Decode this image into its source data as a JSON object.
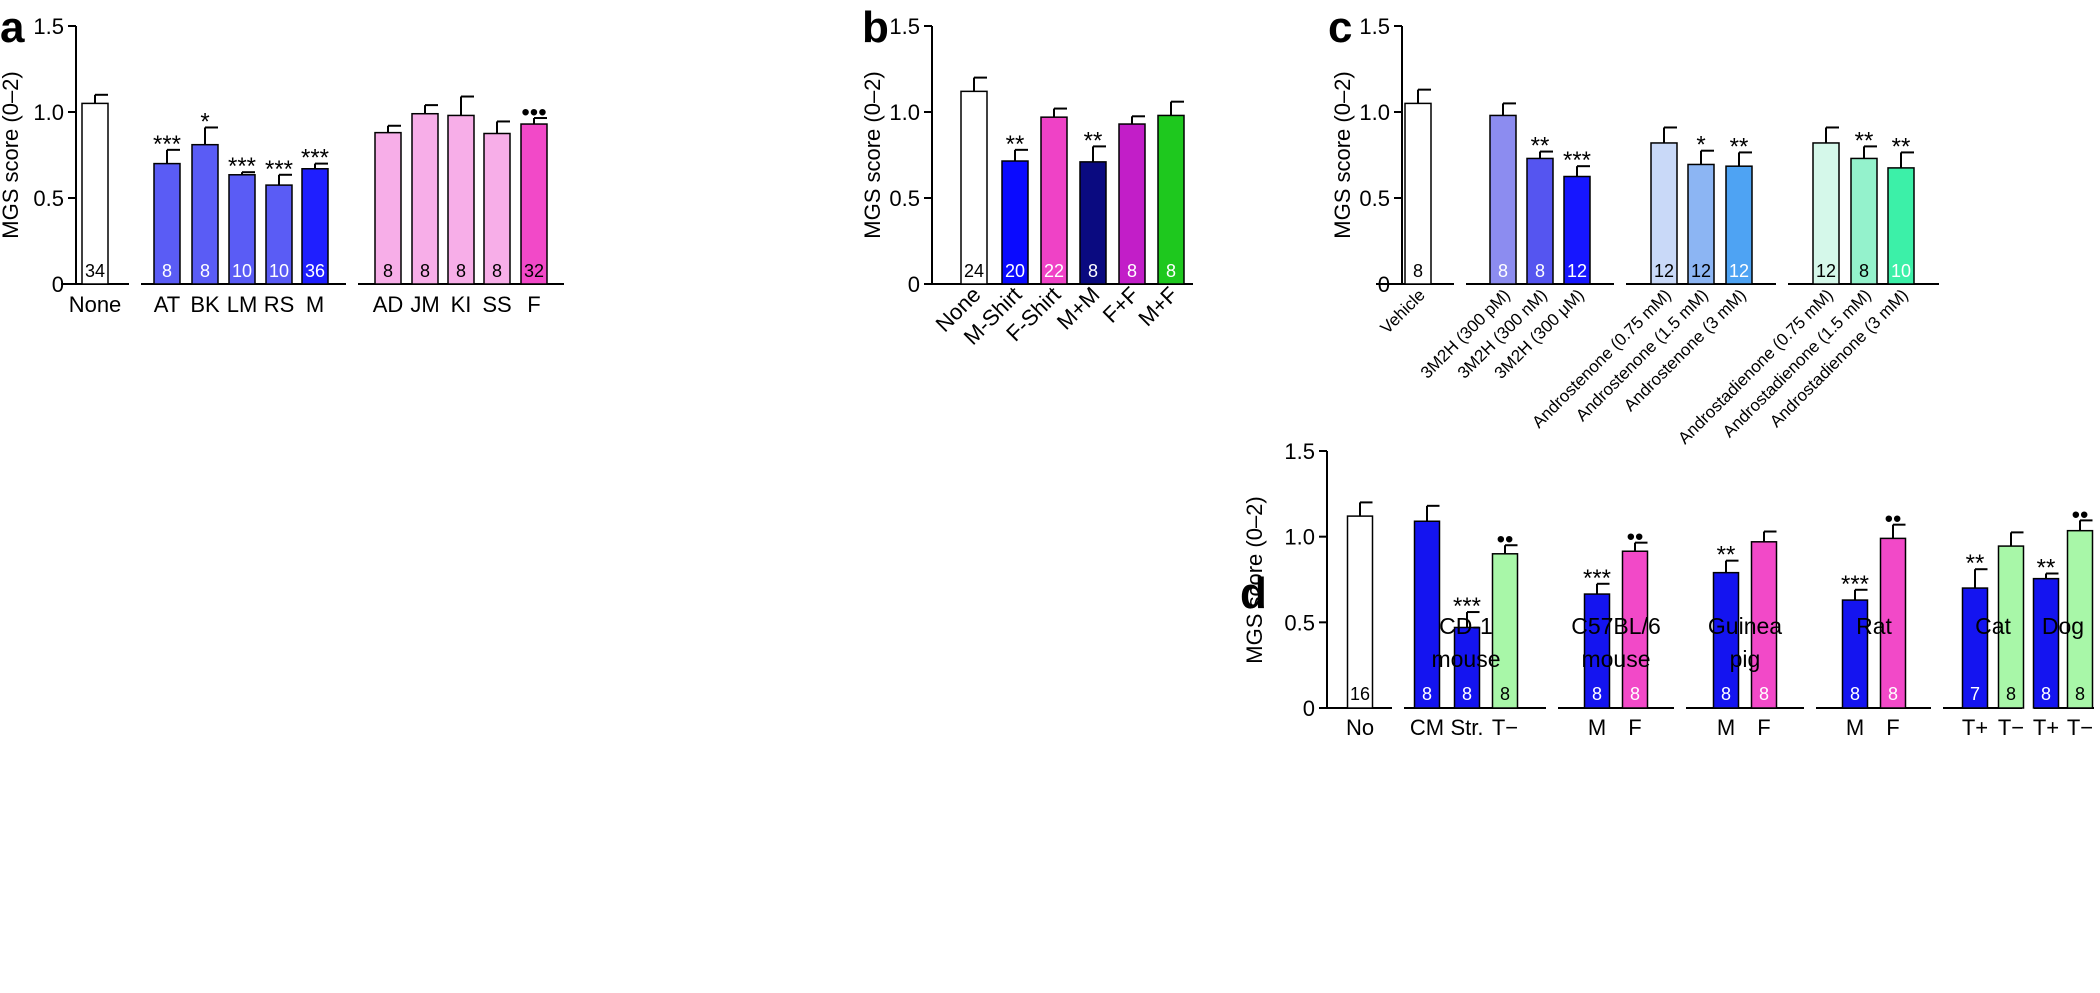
{
  "figure": {
    "ylabel": "MGS score (0–2)",
    "yticks": [
      "0",
      "0.5",
      "1.0",
      "1.5"
    ]
  },
  "chart_data": [
    {
      "panel": "a",
      "type": "bar",
      "ylabel": "MGS score (0–2)",
      "ylim": [
        0,
        1.5
      ],
      "categories": [
        "None",
        "AT",
        "BK",
        "LM",
        "RS",
        "M",
        "AD",
        "JM",
        "KI",
        "SS",
        "F"
      ],
      "values": [
        1.05,
        0.7,
        0.81,
        0.635,
        0.575,
        0.67,
        0.88,
        0.99,
        0.98,
        0.875,
        0.93
      ],
      "errors": [
        0.05,
        0.08,
        0.1,
        0.015,
        0.06,
        0.03,
        0.04,
        0.05,
        0.11,
        0.07,
        0.035
      ],
      "n": [
        "34",
        "8",
        "8",
        "10",
        "10",
        "36",
        "8",
        "8",
        "8",
        "8",
        "32"
      ],
      "significance": [
        "",
        "***",
        "*",
        "***",
        "***",
        "***",
        "",
        "",
        "",
        "",
        "•••"
      ],
      "colors": [
        "#ffffff",
        "#5a5cf5",
        "#5a5cf5",
        "#5a5cf5",
        "#5a5cf5",
        "#1f1fff",
        "#f7aee8",
        "#f7aee8",
        "#f7aee8",
        "#f7aee8",
        "#f249c8"
      ]
    },
    {
      "panel": "b",
      "type": "bar",
      "ylabel": "MGS score (0–2)",
      "ylim": [
        0,
        1.5
      ],
      "categories": [
        "None",
        "M-Shirt",
        "F-Shirt",
        "M+M",
        "F+F",
        "M+F"
      ],
      "values": [
        1.12,
        0.715,
        0.97,
        0.71,
        0.93,
        0.98
      ],
      "errors": [
        0.08,
        0.065,
        0.05,
        0.09,
        0.045,
        0.08
      ],
      "n": [
        "24",
        "20",
        "22",
        "8",
        "8",
        "8"
      ],
      "significance": [
        "",
        "**",
        "",
        "**",
        "",
        ""
      ],
      "colors": [
        "#ffffff",
        "#0a0aff",
        "#ef42c6",
        "#0a0a80",
        "#c21ec8",
        "#1ec81e"
      ]
    },
    {
      "panel": "c",
      "type": "bar",
      "ylabel": "MGS score (0–2)",
      "ylim": [
        0,
        1.5
      ],
      "categories": [
        "Vehicle",
        "3M2H (300 pM)",
        "3M2H (300 nM)",
        "3M2H (300 μM)",
        "Androstenone (0.75 mM)",
        "Androstenone (1.5 mM)",
        "Androstenone (3 mM)",
        "Androstadienone (0.75 mM)",
        "Androstadienone (1.5 mM)",
        "Androstadienone (3 mM)"
      ],
      "values": [
        1.05,
        0.98,
        0.73,
        0.625,
        0.82,
        0.695,
        0.685,
        0.82,
        0.73,
        0.675
      ],
      "errors": [
        0.08,
        0.07,
        0.04,
        0.06,
        0.09,
        0.08,
        0.08,
        0.09,
        0.07,
        0.09
      ],
      "n": [
        "8",
        "8",
        "8",
        "12",
        "12",
        "12",
        "12",
        "12",
        "8",
        "10"
      ],
      "significance": [
        "",
        "",
        "**",
        "***",
        "",
        "*",
        "**",
        "",
        "**",
        "**"
      ],
      "colors": [
        "#ffffff",
        "#8c8cf0",
        "#5555f0",
        "#1616ff",
        "#c9d9f8",
        "#8cb5f3",
        "#4ea3f3",
        "#d5f8ea",
        "#94f2cc",
        "#3cf0a8"
      ]
    },
    {
      "panel": "d",
      "type": "bar",
      "ylabel": "MGS score (0–2)",
      "ylim": [
        0,
        1.5
      ],
      "groups": [
        "CD-1 mouse",
        "C57BL/6 mouse",
        "Guinea pig",
        "Rat",
        "Cat",
        "Dog"
      ],
      "categories": [
        "No",
        "CM",
        "Str.",
        "T−",
        "M",
        "F",
        "M",
        "F",
        "M",
        "F",
        "T+",
        "T−",
        "T+",
        "T−"
      ],
      "values": [
        1.12,
        1.09,
        0.47,
        0.9,
        0.665,
        0.915,
        0.79,
        0.97,
        0.63,
        0.99,
        0.7,
        0.945,
        0.755,
        1.035
      ],
      "errors": [
        0.08,
        0.09,
        0.09,
        0.05,
        0.06,
        0.05,
        0.07,
        0.06,
        0.06,
        0.08,
        0.11,
        0.08,
        0.03,
        0.06
      ],
      "n": [
        "16",
        "8",
        "8",
        "8",
        "8",
        "8",
        "8",
        "8",
        "8",
        "8",
        "7",
        "8",
        "8",
        "8"
      ],
      "significance": [
        "",
        "",
        "***",
        "••",
        "***",
        "••",
        "**",
        "",
        "***",
        "••",
        "**",
        "",
        "**",
        "••"
      ],
      "colors": [
        "#ffffff",
        "#1414f0",
        "#1414f0",
        "#a8f7a8",
        "#1414f0",
        "#f249c8",
        "#1414f0",
        "#f249c8",
        "#1414f0",
        "#f249c8",
        "#1414f0",
        "#a8f7a8",
        "#1414f0",
        "#a8f7a8"
      ]
    }
  ]
}
